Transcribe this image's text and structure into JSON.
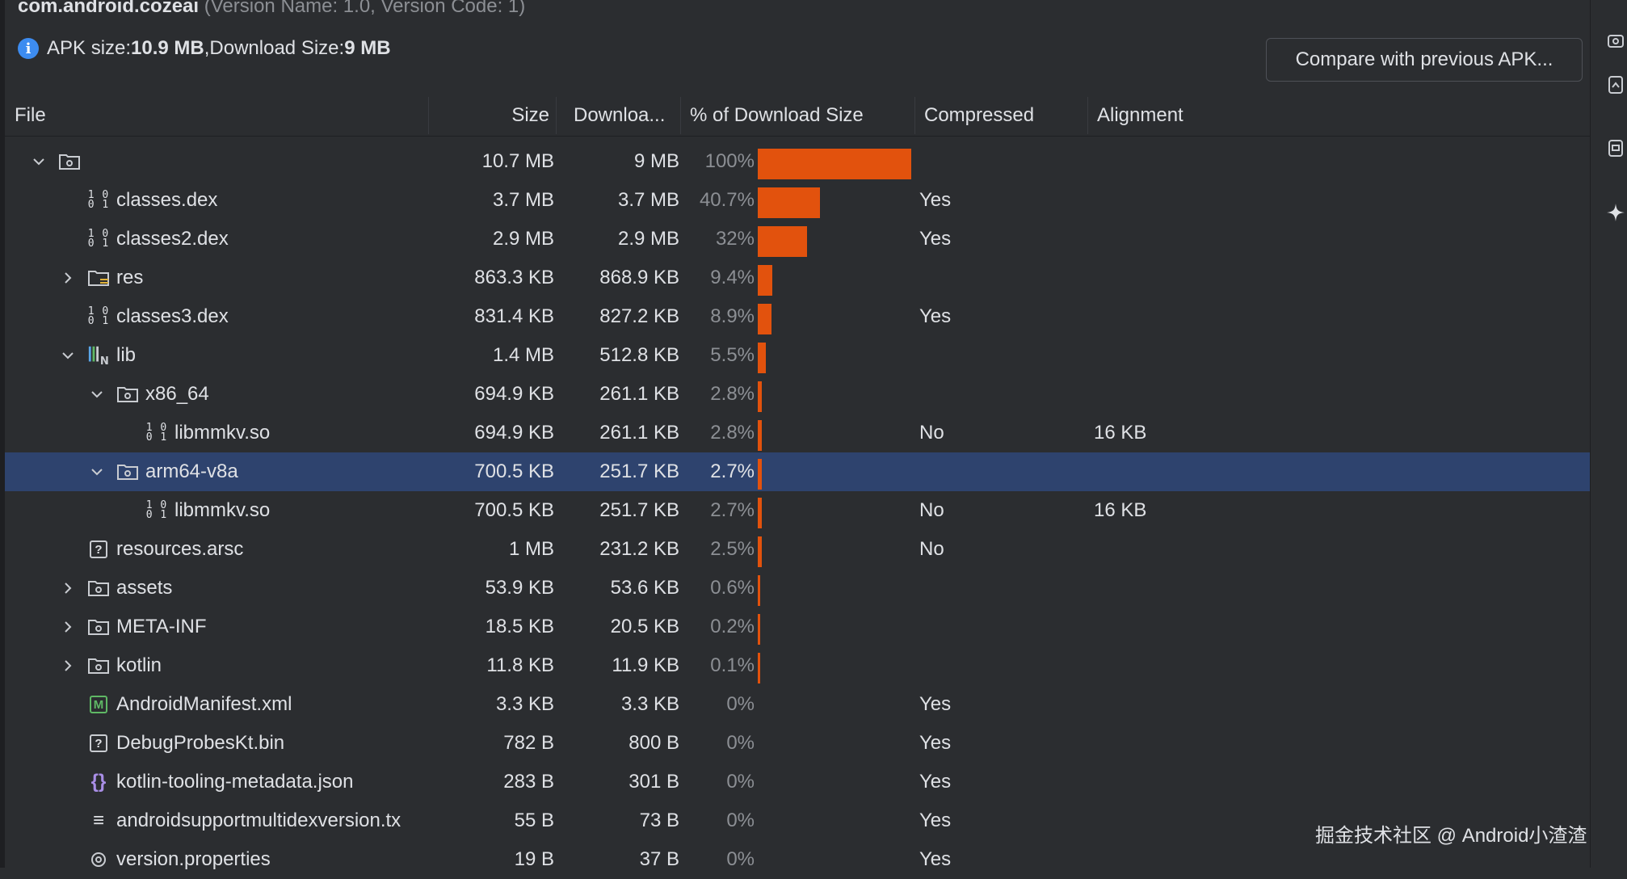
{
  "app": {
    "package": "com.android.cozeai",
    "version_info": "(Version Name: 1.0, Version Code: 1)"
  },
  "apk_info": {
    "size_label": "APK size: ",
    "size_value": "10.9 MB",
    "sep": ", ",
    "download_label": "Download Size: ",
    "download_value": "9 MB"
  },
  "compare_button": "Compare with previous APK...",
  "columns": {
    "file": "File",
    "size": "Size",
    "download": "Downloa...",
    "percent": "% of Download Size",
    "compressed": "Compressed",
    "alignment": "Alignment"
  },
  "rows": [
    {
      "name": "",
      "size": "10.7 MB",
      "download": "9 MB",
      "percent": "100%",
      "pct_value": 100,
      "compressed": "",
      "alignment": "",
      "icon": "folder-icon",
      "depth": 0,
      "expander": "expanded"
    },
    {
      "name": "classes.dex",
      "size": "3.7 MB",
      "download": "3.7 MB",
      "percent": "40.7%",
      "pct_value": 40.7,
      "compressed": "Yes",
      "alignment": "",
      "icon": "dex-icon",
      "depth": 1,
      "expander": "none"
    },
    {
      "name": "classes2.dex",
      "size": "2.9 MB",
      "download": "2.9 MB",
      "percent": "32%",
      "pct_value": 32,
      "compressed": "Yes",
      "alignment": "",
      "icon": "dex-icon",
      "depth": 1,
      "expander": "none"
    },
    {
      "name": "res",
      "size": "863.3 KB",
      "download": "868.9 KB",
      "percent": "9.4%",
      "pct_value": 9.4,
      "compressed": "",
      "alignment": "",
      "icon": "res-folder-icon",
      "depth": 1,
      "expander": "collapsed"
    },
    {
      "name": "classes3.dex",
      "size": "831.4 KB",
      "download": "827.2 KB",
      "percent": "8.9%",
      "pct_value": 8.9,
      "compressed": "Yes",
      "alignment": "",
      "icon": "dex-icon",
      "depth": 1,
      "expander": "none"
    },
    {
      "name": "lib",
      "size": "1.4 MB",
      "download": "512.8 KB",
      "percent": "5.5%",
      "pct_value": 5.5,
      "compressed": "",
      "alignment": "",
      "icon": "native-lib-icon",
      "depth": 1,
      "expander": "expanded"
    },
    {
      "name": "x86_64",
      "size": "694.9 KB",
      "download": "261.1 KB",
      "percent": "2.8%",
      "pct_value": 2.8,
      "compressed": "",
      "alignment": "",
      "icon": "folder-icon",
      "depth": 2,
      "expander": "expanded"
    },
    {
      "name": "libmmkv.so",
      "size": "694.9 KB",
      "download": "261.1 KB",
      "percent": "2.8%",
      "pct_value": 2.8,
      "compressed": "No",
      "alignment": "16 KB",
      "icon": "dex-icon",
      "depth": 3,
      "expander": "none"
    },
    {
      "name": "arm64-v8a",
      "size": "700.5 KB",
      "download": "251.7 KB",
      "percent": "2.7%",
      "pct_value": 2.7,
      "compressed": "",
      "alignment": "",
      "icon": "folder-icon",
      "depth": 2,
      "expander": "expanded",
      "selected": true
    },
    {
      "name": "libmmkv.so",
      "size": "700.5 KB",
      "download": "251.7 KB",
      "percent": "2.7%",
      "pct_value": 2.7,
      "compressed": "No",
      "alignment": "16 KB",
      "icon": "dex-icon",
      "depth": 3,
      "expander": "none"
    },
    {
      "name": "resources.arsc",
      "size": "1 MB",
      "download": "231.2 KB",
      "percent": "2.5%",
      "pct_value": 2.5,
      "compressed": "No",
      "alignment": "",
      "icon": "unknown-file-icon",
      "depth": 1,
      "expander": "none"
    },
    {
      "name": "assets",
      "size": "53.9 KB",
      "download": "53.6 KB",
      "percent": "0.6%",
      "pct_value": 0.6,
      "compressed": "",
      "alignment": "",
      "icon": "folder-icon",
      "depth": 1,
      "expander": "collapsed"
    },
    {
      "name": "META-INF",
      "size": "18.5 KB",
      "download": "20.5 KB",
      "percent": "0.2%",
      "pct_value": 0.2,
      "compressed": "",
      "alignment": "",
      "icon": "folder-icon",
      "depth": 1,
      "expander": "collapsed"
    },
    {
      "name": "kotlin",
      "size": "11.8 KB",
      "download": "11.9 KB",
      "percent": "0.1%",
      "pct_value": 0.1,
      "compressed": "",
      "alignment": "",
      "icon": "folder-icon",
      "depth": 1,
      "expander": "collapsed"
    },
    {
      "name": "AndroidManifest.xml",
      "size": "3.3 KB",
      "download": "3.3 KB",
      "percent": "0%",
      "pct_value": 0,
      "compressed": "Yes",
      "alignment": "",
      "icon": "manifest-icon",
      "depth": 1,
      "expander": "none"
    },
    {
      "name": "DebugProbesKt.bin",
      "size": "782 B",
      "download": "800 B",
      "percent": "0%",
      "pct_value": 0,
      "compressed": "Yes",
      "alignment": "",
      "icon": "unknown-file-icon",
      "depth": 1,
      "expander": "none"
    },
    {
      "name": "kotlin-tooling-metadata.json",
      "size": "283 B",
      "download": "301 B",
      "percent": "0%",
      "pct_value": 0,
      "compressed": "Yes",
      "alignment": "",
      "icon": "json-icon",
      "depth": 1,
      "expander": "none"
    },
    {
      "name": "androidsupportmultidexversion.tx",
      "size": "55 B",
      "download": "73 B",
      "percent": "0%",
      "pct_value": 0,
      "compressed": "Yes",
      "alignment": "",
      "icon": "text-file-icon",
      "depth": 1,
      "expander": "none"
    },
    {
      "name": "version.properties",
      "size": "19 B",
      "download": "37 B",
      "percent": "0%",
      "pct_value": 0,
      "compressed": "Yes",
      "alignment": "",
      "icon": "properties-icon",
      "depth": 1,
      "expander": "none"
    }
  ],
  "colors": {
    "bar": "#e2520d",
    "selection": "#2e436e",
    "background": "#2b2d30"
  },
  "right_toolbar_icons": [
    "device-icon",
    "device-manager-icon",
    "clipboard-icon",
    "sparkle-icon"
  ],
  "watermark": "掘金技术社区 @ Android小渣渣"
}
